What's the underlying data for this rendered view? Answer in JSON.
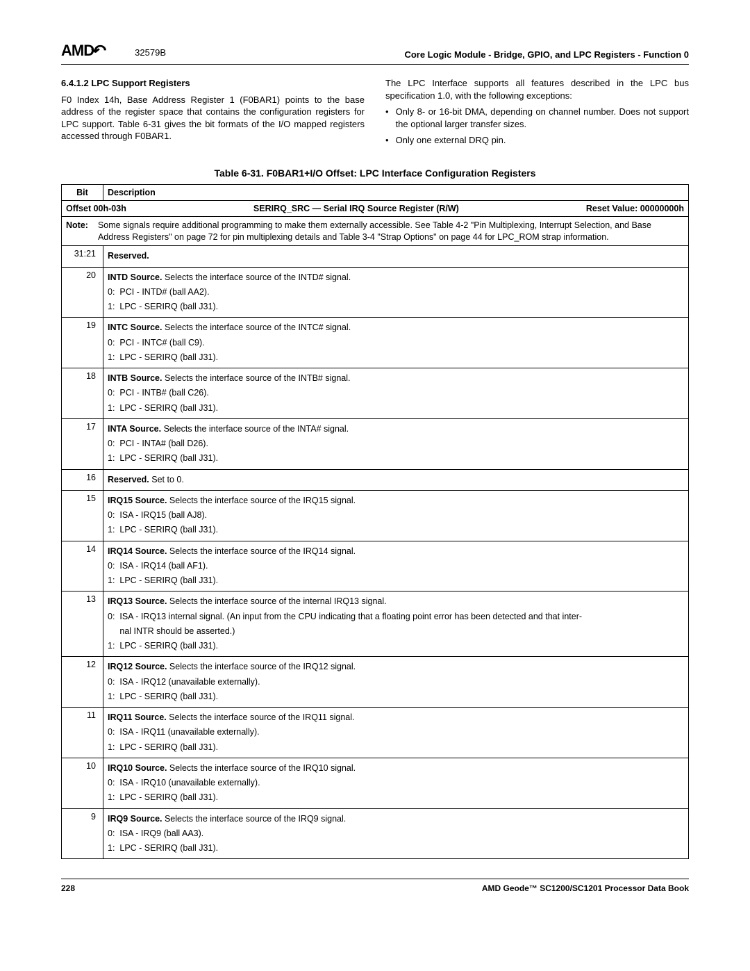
{
  "header": {
    "logo_text": "AMD",
    "doc_number": "32579B",
    "doc_title": "Core Logic Module - Bridge, GPIO, and LPC Registers - Function 0"
  },
  "section": {
    "heading": "6.4.1.2   LPC Support Registers",
    "left_para": "F0 Index 14h, Base Address Register 1 (F0BAR1) points to the base address of the register space that contains the configuration registers for LPC support. Table 6-31 gives the bit formats of the I/O mapped registers accessed through F0BAR1.",
    "right_para": "The LPC Interface supports all features described in the LPC bus specification 1.0, with the following exceptions:",
    "bullets": [
      "Only 8- or 16-bit DMA, depending on channel number. Does not support the optional larger transfer sizes.",
      "Only one external DRQ pin."
    ]
  },
  "table": {
    "caption": "Table 6-31.  F0BAR1+I/O Offset: LPC Interface Configuration Registers",
    "col_bit": "Bit",
    "col_desc": "Description",
    "offset_label": "Offset 00h-03h",
    "reg_name": "SERIRQ_SRC — Serial IRQ Source Register (R/W)",
    "reset_label": "Reset Value: 00000000h",
    "note_label": "Note:",
    "note_text": "Some signals require additional programming to make them externally accessible. See Table 4-2 \"Pin Multiplexing, Interrupt Selection, and Base Address Registers\" on page 72 for pin multiplexing details and Table 3-4 \"Strap Options\" on page 44 for LPC_ROM strap information.",
    "rows": [
      {
        "bit": "31:21",
        "desc_html": "<b>Reserved.</b>"
      },
      {
        "bit": "20",
        "desc_html": "<b>INTD Source.</b> Selects the interface source of the INTD# signal.<br>0:&nbsp;&nbsp;PCI - INTD# (ball AA2).<br>1:&nbsp;&nbsp;LPC - SERIRQ (ball J31)."
      },
      {
        "bit": "19",
        "desc_html": "<b>INTC Source.</b> Selects the interface source of the INTC# signal.<br>0:&nbsp;&nbsp;PCI - INTC# (ball C9).<br>1:&nbsp;&nbsp;LPC - SERIRQ (ball J31)."
      },
      {
        "bit": "18",
        "desc_html": "<b>INTB Source.</b> Selects the interface source of the INTB# signal.<br>0:&nbsp;&nbsp;PCI - INTB# (ball C26).<br>1:&nbsp;&nbsp;LPC - SERIRQ (ball J31)."
      },
      {
        "bit": "17",
        "desc_html": "<b>INTA Source.</b> Selects the interface source of the INTA# signal.<br>0:&nbsp;&nbsp;PCI - INTA# (ball D26).<br>1:&nbsp;&nbsp;LPC - SERIRQ (ball J31)."
      },
      {
        "bit": "16",
        "desc_html": "<b>Reserved.</b> Set to 0."
      },
      {
        "bit": "15",
        "desc_html": "<b>IRQ15 Source.</b> Selects the interface source of the IRQ15 signal.<br>0:&nbsp;&nbsp;ISA - IRQ15 (ball AJ8).<br>1:&nbsp;&nbsp;LPC - SERIRQ (ball J31)."
      },
      {
        "bit": "14",
        "desc_html": "<b>IRQ14 Source.</b> Selects the interface source of the IRQ14 signal.<br>0:&nbsp;&nbsp;ISA - IRQ14 (ball AF1).<br>1:&nbsp;&nbsp;LPC - SERIRQ (ball J31)."
      },
      {
        "bit": "13",
        "desc_html": "<b>IRQ13 Source.</b> Selects the interface source of the internal IRQ13 signal.<br>0:&nbsp;&nbsp;ISA - IRQ13 internal signal. (An input from the CPU indicating that a floating point error has been detected and that inter-<br>&nbsp;&nbsp;&nbsp;&nbsp;&nbsp;nal INTR should be asserted.)<br>1:&nbsp;&nbsp;LPC - SERIRQ (ball J31)."
      },
      {
        "bit": "12",
        "desc_html": "<b>IRQ12 Source.</b> Selects the interface source of the IRQ12 signal.<br>0:&nbsp;&nbsp;ISA - IRQ12 (unavailable externally).<br>1:&nbsp;&nbsp;LPC - SERIRQ (ball J31)."
      },
      {
        "bit": "11",
        "desc_html": "<b>IRQ11 Source.</b> Selects the interface source of the IRQ11 signal.<br>0:&nbsp;&nbsp;ISA - IRQ11 (unavailable externally).<br>1:&nbsp;&nbsp;LPC - SERIRQ (ball J31)."
      },
      {
        "bit": "10",
        "desc_html": "<b>IRQ10 Source.</b> Selects the interface source of the IRQ10 signal.<br>0:&nbsp;&nbsp;ISA - IRQ10 (unavailable externally).<br>1:&nbsp;&nbsp;LPC - SERIRQ (ball J31)."
      },
      {
        "bit": "9",
        "desc_html": "<b>IRQ9 Source.</b> Selects the interface source of the IRQ9 signal.<br>0:&nbsp;&nbsp;ISA - IRQ9 (ball AA3).<br>1:&nbsp;&nbsp;LPC - SERIRQ (ball J31)."
      }
    ]
  },
  "footer": {
    "page_num": "228",
    "book_title": "AMD Geode™ SC1200/SC1201 Processor Data Book"
  }
}
